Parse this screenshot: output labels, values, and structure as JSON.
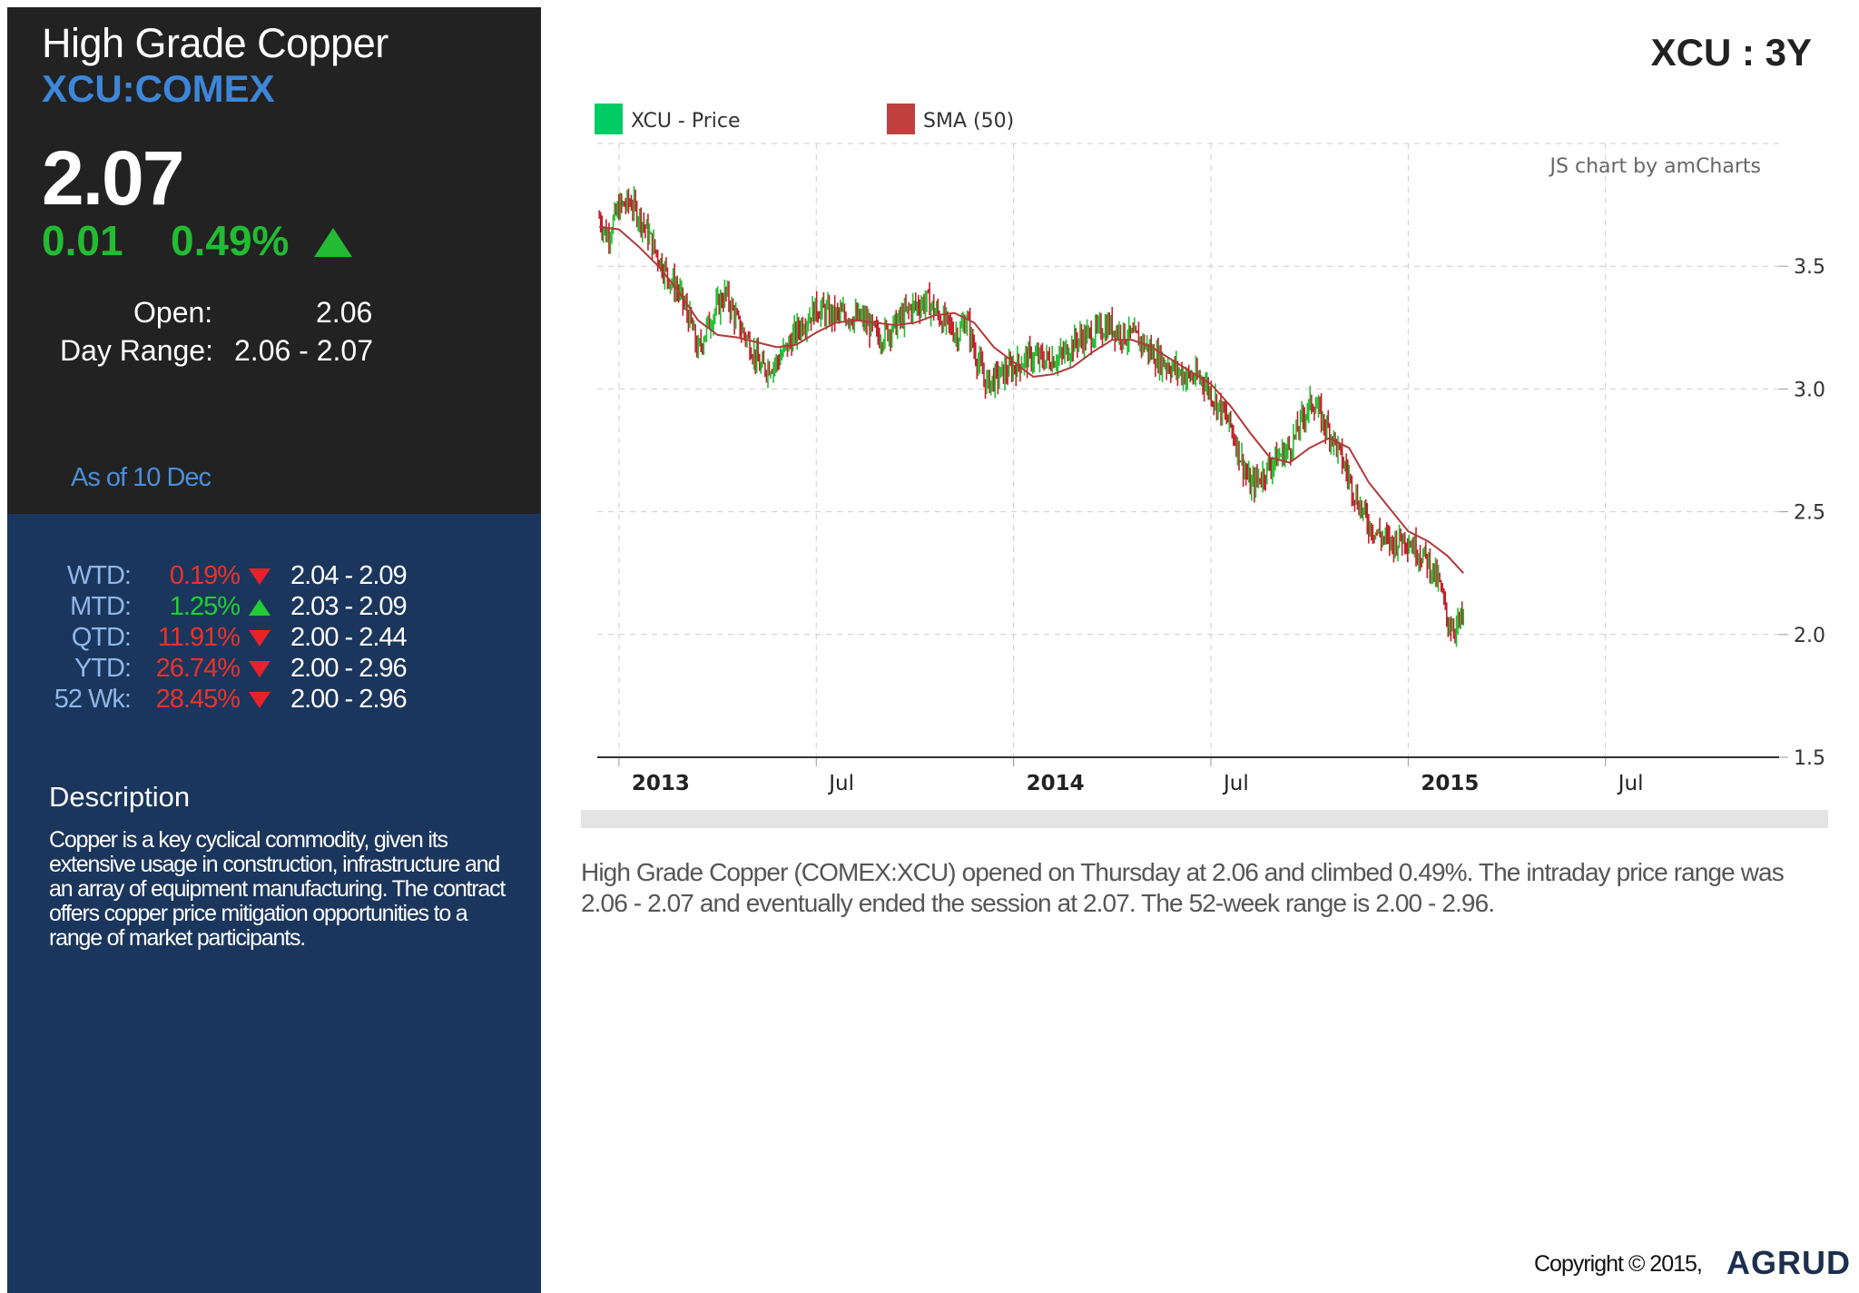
{
  "instrument": {
    "name": "High Grade Copper",
    "ticker": "XCU:COMEX",
    "price": "2.07",
    "change": "0.01",
    "change_pct": "0.49%",
    "open_label": "Open:",
    "open_value": "2.06",
    "day_range_label": "Day Range:",
    "day_range_value": "2.06 - 2.07",
    "as_of": "As of 10 Dec"
  },
  "performance": [
    {
      "label": "WTD:",
      "pct": "0.19%",
      "direction": "down",
      "range": "2.04 - 2.09"
    },
    {
      "label": "MTD:",
      "pct": "1.25%",
      "direction": "up",
      "range": "2.03 - 2.09"
    },
    {
      "label": "QTD:",
      "pct": "11.91%",
      "direction": "down",
      "range": "2.00 - 2.44"
    },
    {
      "label": "YTD:",
      "pct": "26.74%",
      "direction": "down",
      "range": "2.00 - 2.96"
    },
    {
      "label": "52 Wk:",
      "pct": "28.45%",
      "direction": "down",
      "range": "2.00 - 2.96"
    }
  ],
  "description": {
    "heading": "Description",
    "text": "Copper is a key cyclical commodity, given its extensive usage in construction, infrastructure and an array of equipment manufacturing. The contract offers copper price mitigation opportunities to a range of market participants."
  },
  "range_heading": "XCU : 3Y",
  "chart_credit": "JS chart by amCharts",
  "summary": "High Grade Copper (COMEX:XCU) opened on Thursday at 2.06 and climbed 0.49%. The intraday price range was 2.06 - 2.07 and eventually ended the session at 2.07. The 52-week range is 2.00 - 2.96.",
  "footer": {
    "copyright": "Copyright © 2015,",
    "brand": "AGRUD"
  },
  "colors": {
    "up": "#22bb33",
    "down": "#c0202a",
    "sma": "#b03a3a",
    "panel_dark": "#222222",
    "panel_blue": "#1b365d"
  },
  "chart_data": {
    "type": "line",
    "legend": [
      {
        "name": "XCU - Price",
        "color": "#00cc66"
      },
      {
        "name": "SMA (50)",
        "color": "#c04040"
      }
    ],
    "x_ticks": [
      {
        "label": "2013",
        "t": 0.0,
        "bold": true
      },
      {
        "label": "Jul",
        "t": 0.5,
        "bold": false
      },
      {
        "label": "2014",
        "t": 1.0,
        "bold": true
      },
      {
        "label": "Jul",
        "t": 1.5,
        "bold": false
      },
      {
        "label": "2015",
        "t": 2.0,
        "bold": true
      },
      {
        "label": "Jul",
        "t": 2.5,
        "bold": false
      }
    ],
    "y_ticks": [
      "1.5",
      "2.0",
      "2.5",
      "3.0",
      "3.5"
    ],
    "xlim": [
      -0.055,
      2.94
    ],
    "ylim": [
      1.5,
      4.0
    ],
    "grid": true,
    "legend_position": "top-left",
    "series": [
      {
        "name": "XCU - Price",
        "points": [
          [
            -0.05,
            3.7
          ],
          [
            -0.03,
            3.62
          ],
          [
            0.0,
            3.74
          ],
          [
            0.03,
            3.76
          ],
          [
            0.06,
            3.68
          ],
          [
            0.09,
            3.57
          ],
          [
            0.12,
            3.47
          ],
          [
            0.15,
            3.4
          ],
          [
            0.18,
            3.28
          ],
          [
            0.2,
            3.15
          ],
          [
            0.22,
            3.24
          ],
          [
            0.24,
            3.31
          ],
          [
            0.27,
            3.39
          ],
          [
            0.3,
            3.27
          ],
          [
            0.33,
            3.19
          ],
          [
            0.36,
            3.08
          ],
          [
            0.4,
            3.11
          ],
          [
            0.43,
            3.18
          ],
          [
            0.46,
            3.26
          ],
          [
            0.5,
            3.33
          ],
          [
            0.54,
            3.3
          ],
          [
            0.58,
            3.3
          ],
          [
            0.62,
            3.28
          ],
          [
            0.66,
            3.21
          ],
          [
            0.7,
            3.26
          ],
          [
            0.74,
            3.33
          ],
          [
            0.78,
            3.36
          ],
          [
            0.82,
            3.28
          ],
          [
            0.86,
            3.22
          ],
          [
            0.88,
            3.29
          ],
          [
            0.9,
            3.16
          ],
          [
            0.93,
            3.02
          ],
          [
            0.96,
            3.05
          ],
          [
            1.0,
            3.09
          ],
          [
            1.04,
            3.13
          ],
          [
            1.08,
            3.12
          ],
          [
            1.12,
            3.13
          ],
          [
            1.16,
            3.2
          ],
          [
            1.2,
            3.22
          ],
          [
            1.24,
            3.26
          ],
          [
            1.28,
            3.22
          ],
          [
            1.32,
            3.2
          ],
          [
            1.36,
            3.13
          ],
          [
            1.4,
            3.09
          ],
          [
            1.44,
            3.05
          ],
          [
            1.48,
            3.04
          ],
          [
            1.52,
            2.93
          ],
          [
            1.55,
            2.85
          ],
          [
            1.58,
            2.7
          ],
          [
            1.6,
            2.6
          ],
          [
            1.63,
            2.65
          ],
          [
            1.66,
            2.71
          ],
          [
            1.7,
            2.76
          ],
          [
            1.74,
            2.91
          ],
          [
            1.76,
            2.95
          ],
          [
            1.78,
            2.88
          ],
          [
            1.81,
            2.8
          ],
          [
            1.84,
            2.68
          ],
          [
            1.87,
            2.55
          ],
          [
            1.9,
            2.45
          ],
          [
            1.93,
            2.4
          ],
          [
            1.96,
            2.37
          ],
          [
            1.99,
            2.4
          ],
          [
            2.02,
            2.35
          ],
          [
            2.05,
            2.3
          ],
          [
            2.08,
            2.2
          ],
          [
            2.1,
            2.05
          ],
          [
            2.12,
            2.03
          ],
          [
            2.14,
            2.07
          ]
        ]
      },
      {
        "name": "SMA (50)",
        "points": [
          [
            -0.05,
            3.66
          ],
          [
            0.0,
            3.65
          ],
          [
            0.05,
            3.58
          ],
          [
            0.1,
            3.5
          ],
          [
            0.15,
            3.4
          ],
          [
            0.2,
            3.28
          ],
          [
            0.25,
            3.22
          ],
          [
            0.3,
            3.21
          ],
          [
            0.35,
            3.19
          ],
          [
            0.4,
            3.17
          ],
          [
            0.45,
            3.18
          ],
          [
            0.5,
            3.23
          ],
          [
            0.55,
            3.27
          ],
          [
            0.6,
            3.28
          ],
          [
            0.65,
            3.27
          ],
          [
            0.7,
            3.26
          ],
          [
            0.75,
            3.27
          ],
          [
            0.8,
            3.3
          ],
          [
            0.85,
            3.31
          ],
          [
            0.9,
            3.27
          ],
          [
            0.95,
            3.17
          ],
          [
            1.0,
            3.11
          ],
          [
            1.05,
            3.05
          ],
          [
            1.1,
            3.06
          ],
          [
            1.15,
            3.09
          ],
          [
            1.2,
            3.15
          ],
          [
            1.25,
            3.2
          ],
          [
            1.3,
            3.2
          ],
          [
            1.35,
            3.17
          ],
          [
            1.4,
            3.12
          ],
          [
            1.45,
            3.07
          ],
          [
            1.5,
            3.02
          ],
          [
            1.55,
            2.93
          ],
          [
            1.6,
            2.82
          ],
          [
            1.65,
            2.72
          ],
          [
            1.7,
            2.7
          ],
          [
            1.75,
            2.76
          ],
          [
            1.8,
            2.8
          ],
          [
            1.85,
            2.76
          ],
          [
            1.9,
            2.62
          ],
          [
            1.95,
            2.52
          ],
          [
            2.0,
            2.42
          ],
          [
            2.05,
            2.38
          ],
          [
            2.1,
            2.32
          ],
          [
            2.14,
            2.25
          ]
        ]
      }
    ]
  }
}
